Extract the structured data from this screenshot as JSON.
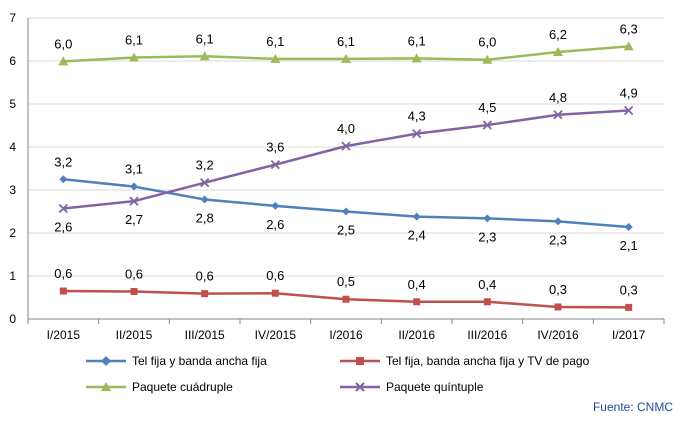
{
  "chart_data": {
    "type": "line",
    "categories": [
      "I/2015",
      "II/2015",
      "III/2015",
      "IV/2015",
      "I/2016",
      "II/2016",
      "III/2016",
      "IV/2016",
      "I/2017"
    ],
    "ylim": [
      0,
      7
    ],
    "yticks": [
      "0",
      "1",
      "2",
      "3",
      "4",
      "5",
      "6",
      "7"
    ],
    "grid": "horizontal",
    "legend_position": "bottom",
    "series": [
      {
        "name": "Tel fija y banda ancha fija",
        "color": "#4F81BD",
        "marker": "diamond",
        "values": [
          3.25,
          3.08,
          2.78,
          2.63,
          2.5,
          2.38,
          2.34,
          2.27,
          2.14
        ],
        "labels": [
          "3,2",
          "3,1",
          "2,8",
          "2,6",
          "2,5",
          "2,4",
          "2,3",
          "2,3",
          "2,1"
        ]
      },
      {
        "name": "Tel fija, banda ancha fija y TV de pago",
        "color": "#C0504D",
        "marker": "square",
        "values": [
          0.65,
          0.64,
          0.59,
          0.6,
          0.46,
          0.4,
          0.4,
          0.28,
          0.27
        ],
        "labels": [
          "0,6",
          "0,6",
          "0,6",
          "0,6",
          "0,5",
          "0,4",
          "0,4",
          "0,3",
          "0,3"
        ]
      },
      {
        "name": "Paquete cuádruple",
        "color": "#9BBB59",
        "marker": "triangle",
        "values": [
          5.99,
          6.08,
          6.11,
          6.05,
          6.05,
          6.06,
          6.03,
          6.21,
          6.34
        ],
        "labels": [
          "6,0",
          "6,1",
          "6,1",
          "6,1",
          "6,1",
          "6,1",
          "6,0",
          "6,2",
          "6,3"
        ]
      },
      {
        "name": "Paquete quíntuple",
        "color": "#8064A2",
        "marker": "x",
        "values": [
          2.57,
          2.74,
          3.17,
          3.59,
          4.02,
          4.31,
          4.51,
          4.75,
          4.85
        ],
        "labels": [
          "2,6",
          "2,7",
          "3,2",
          "3,6",
          "4,0",
          "4,3",
          "4,5",
          "4,8",
          "4,9"
        ]
      }
    ]
  },
  "source_text": "Fuente: CNMC"
}
